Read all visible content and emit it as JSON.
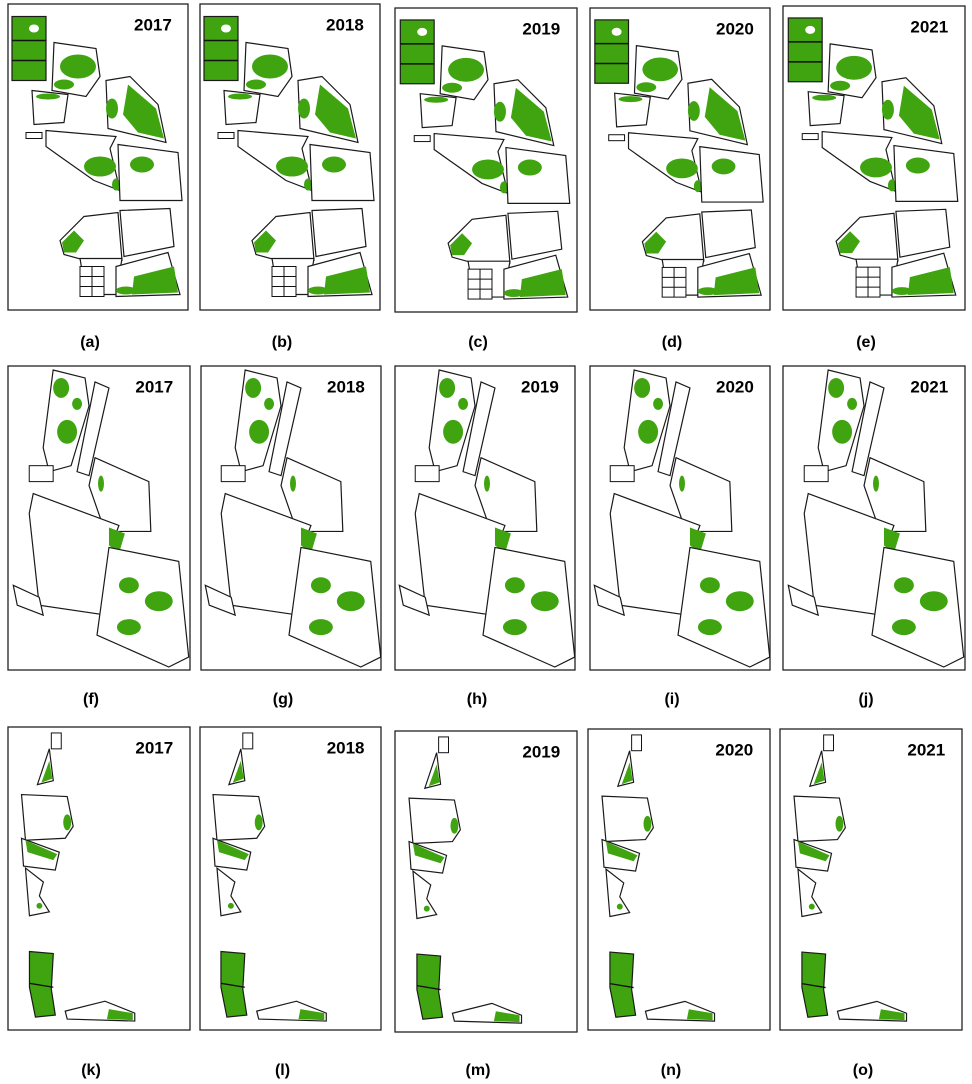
{
  "panels": [
    {
      "year": "2017",
      "caption": "(a)"
    },
    {
      "year": "2018",
      "caption": "(b)"
    },
    {
      "year": "2019",
      "caption": "(c)"
    },
    {
      "year": "2020",
      "caption": "(d)"
    },
    {
      "year": "2021",
      "caption": "(e)"
    },
    {
      "year": "2017",
      "caption": "(f)"
    },
    {
      "year": "2018",
      "caption": "(g)"
    },
    {
      "year": "2019",
      "caption": "(h)"
    },
    {
      "year": "2020",
      "caption": "(i)"
    },
    {
      "year": "2021",
      "caption": "(j)"
    },
    {
      "year": "2017",
      "caption": "(k)"
    },
    {
      "year": "2018",
      "caption": "(l)"
    },
    {
      "year": "2019",
      "caption": "(m)"
    },
    {
      "year": "2020",
      "caption": "(n)"
    },
    {
      "year": "2021",
      "caption": "(o)"
    }
  ]
}
